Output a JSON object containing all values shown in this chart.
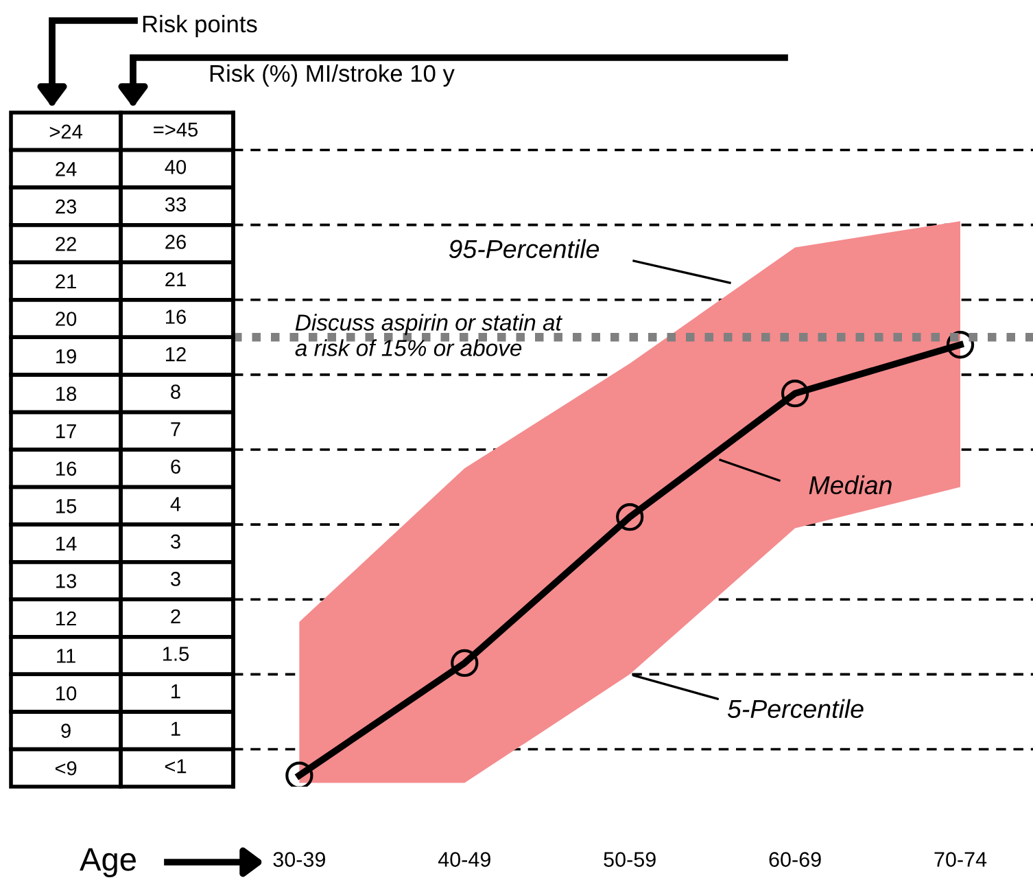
{
  "chart_data": {
    "type": "line",
    "xlabel": "Age",
    "ylabel": "Risk points",
    "categories": [
      "30-39",
      "40-49",
      "50-59",
      "60-69",
      "70-74"
    ],
    "series": [
      {
        "name": "Median",
        "color": "#000000",
        "values": [
          7.8,
          10.8,
          14.7,
          18.0,
          19.3
        ],
        "lower": [
          7.6,
          7.6,
          10.5,
          14.4,
          15.5
        ],
        "upper": [
          11.9,
          16.0,
          18.8,
          21.9,
          22.6
        ]
      }
    ],
    "marker": "circle",
    "line_style": "solid",
    "ylim": [
      7.5,
      25.5
    ],
    "yticks": [
      {
        "value": 8,
        "label": "<9"
      },
      9,
      10,
      11,
      12,
      13,
      14,
      15,
      16,
      17,
      18,
      19,
      20,
      21,
      22,
      23,
      24,
      {
        "value": 25,
        "label": ">24"
      }
    ],
    "ref_lines": [
      {
        "axis": "y",
        "value": 24.5,
        "color": "#000000",
        "line_style": "dashed"
      },
      {
        "axis": "y",
        "value": 22.5,
        "color": "#000000",
        "line_style": "dashed"
      },
      {
        "axis": "y",
        "value": 20.5,
        "color": "#000000",
        "line_style": "dashed"
      },
      {
        "axis": "y",
        "value": 18.5,
        "color": "#000000",
        "line_style": "dashed"
      },
      {
        "axis": "y",
        "value": 16.5,
        "color": "#000000",
        "line_style": "dashed"
      },
      {
        "axis": "y",
        "value": 14.5,
        "color": "#000000",
        "line_style": "dashed"
      },
      {
        "axis": "y",
        "value": 12.5,
        "color": "#000000",
        "line_style": "dashed"
      },
      {
        "axis": "y",
        "value": 10.5,
        "color": "#000000",
        "line_style": "dashed"
      },
      {
        "axis": "y",
        "value": 8.5,
        "color": "#000000",
        "line_style": "dashed"
      },
      {
        "axis": "y",
        "value": 19.5,
        "color": "#808080",
        "line_style": "dotted",
        "label": "Discuss aspirin or statin at\na risk of 15% or above"
      }
    ],
    "annotations": [
      "95-Percentile",
      {
        "text": "5-Percentile",
        "x": "50-59",
        "y": 10.5
      },
      "Risk (%) MI/stroke 10 y",
      "=>45",
      "40",
      "33",
      "26",
      "21",
      "16",
      "12",
      "8",
      "7",
      "6",
      "4",
      "3",
      "3",
      "2",
      "1.5",
      "1",
      "1",
      "<1"
    ],
    "grid": false
  }
}
